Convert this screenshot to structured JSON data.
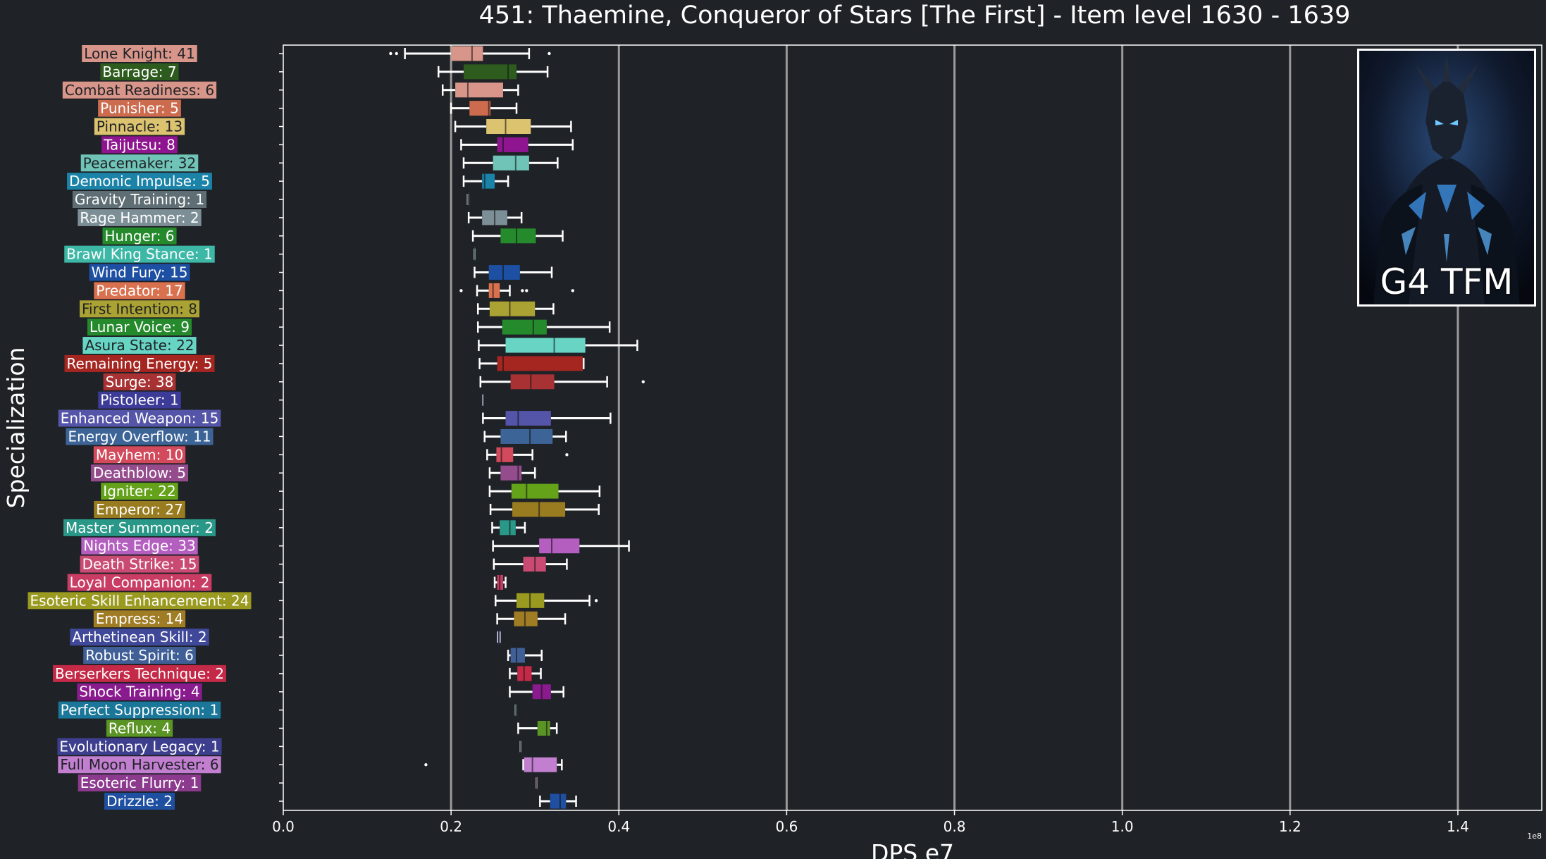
{
  "chart_data": {
    "type": "box",
    "title": "451: Thaemine, Conqueror of Stars [The First] - Item level 1630 - 1639",
    "xlabel": "DPS e7",
    "ylabel": "Specialization",
    "x_offset_label": "1e8",
    "xlim": [
      0,
      1.5
    ],
    "xticks": [
      0.0,
      0.2,
      0.4,
      0.6,
      0.8,
      1.0,
      1.2,
      1.4
    ],
    "xtick_labels": [
      "0.0",
      "0.2",
      "0.4",
      "0.6",
      "0.8",
      "1.0",
      "1.2",
      "1.4"
    ],
    "grid": "vertical",
    "series": [
      {
        "label": "Lone Knight: 41",
        "color": "#d8958a",
        "min": 0.145,
        "q1": 0.2,
        "median": 0.225,
        "q3": 0.238,
        "max": 0.293,
        "outliers": [
          0.128,
          0.135,
          0.317
        ]
      },
      {
        "label": "Barrage: 7",
        "color": "#2e5b1e",
        "min": 0.185,
        "q1": 0.215,
        "median": 0.268,
        "q3": 0.278,
        "max": 0.315,
        "outliers": []
      },
      {
        "label": "Combat Readiness: 6",
        "color": "#d8958a",
        "min": 0.19,
        "q1": 0.205,
        "median": 0.22,
        "q3": 0.262,
        "max": 0.28,
        "outliers": []
      },
      {
        "label": "Punisher: 5",
        "color": "#cd6b4f",
        "min": 0.2,
        "q1": 0.222,
        "median": 0.245,
        "q3": 0.247,
        "max": 0.278,
        "outliers": []
      },
      {
        "label": "Pinnacle: 13",
        "color": "#dcc36f",
        "min": 0.205,
        "q1": 0.242,
        "median": 0.265,
        "q3": 0.295,
        "max": 0.343,
        "outliers": []
      },
      {
        "label": "Taijutsu: 8",
        "color": "#8e158f",
        "min": 0.212,
        "q1": 0.255,
        "median": 0.262,
        "q3": 0.292,
        "max": 0.345,
        "outliers": []
      },
      {
        "label": "Peacemaker: 32",
        "color": "#6fc4b7",
        "min": 0.215,
        "q1": 0.25,
        "median": 0.277,
        "q3": 0.293,
        "max": 0.327,
        "outliers": []
      },
      {
        "label": "Demonic Impulse: 5",
        "color": "#1b83a8",
        "min": 0.215,
        "q1": 0.237,
        "median": 0.24,
        "q3": 0.252,
        "max": 0.268,
        "outliers": []
      },
      {
        "label": "Gravity Training: 1",
        "color": "#5f6e74",
        "min": 0.22,
        "q1": 0.22,
        "median": 0.22,
        "q3": 0.22,
        "max": 0.22,
        "outliers": []
      },
      {
        "label": "Rage Hammer: 2",
        "color": "#7d8f96",
        "min": 0.221,
        "q1": 0.237,
        "median": 0.252,
        "q3": 0.267,
        "max": 0.284,
        "outliers": []
      },
      {
        "label": "Hunger: 6",
        "color": "#258a2c",
        "min": 0.226,
        "q1": 0.259,
        "median": 0.278,
        "q3": 0.301,
        "max": 0.333,
        "outliers": []
      },
      {
        "label": "Brawl King Stance: 1",
        "color": "#3db8a7",
        "min": 0.228,
        "q1": 0.228,
        "median": 0.228,
        "q3": 0.228,
        "max": 0.228,
        "outliers": []
      },
      {
        "label": "Wind Fury: 15",
        "color": "#1d4fa2",
        "min": 0.228,
        "q1": 0.245,
        "median": 0.262,
        "q3": 0.282,
        "max": 0.32,
        "outliers": []
      },
      {
        "label": "Predator: 17",
        "color": "#d9714f",
        "min": 0.231,
        "q1": 0.245,
        "median": 0.25,
        "q3": 0.258,
        "max": 0.27,
        "outliers": [
          0.212,
          0.285,
          0.29,
          0.345
        ]
      },
      {
        "label": "First Intention: 8",
        "color": "#aaa233",
        "min": 0.232,
        "q1": 0.246,
        "median": 0.27,
        "q3": 0.3,
        "max": 0.322,
        "outliers": []
      },
      {
        "label": "Lunar Voice: 9",
        "color": "#258a2c",
        "min": 0.232,
        "q1": 0.261,
        "median": 0.298,
        "q3": 0.314,
        "max": 0.389,
        "outliers": []
      },
      {
        "label": "Asura State: 22",
        "color": "#67d4c4",
        "min": 0.233,
        "q1": 0.265,
        "median": 0.323,
        "q3": 0.36,
        "max": 0.422,
        "outliers": []
      },
      {
        "label": "Remaining Energy: 5",
        "color": "#a52621",
        "min": 0.234,
        "q1": 0.255,
        "median": 0.262,
        "q3": 0.357,
        "max": 0.358,
        "outliers": []
      },
      {
        "label": "Surge: 38",
        "color": "#a83233",
        "min": 0.235,
        "q1": 0.271,
        "median": 0.295,
        "q3": 0.323,
        "max": 0.386,
        "outliers": [
          0.429
        ]
      },
      {
        "label": "Pistoleer: 1",
        "color": "#3d3b98",
        "min": 0.238,
        "q1": 0.238,
        "median": 0.238,
        "q3": 0.238,
        "max": 0.238,
        "outliers": []
      },
      {
        "label": "Enhanced Weapon: 15",
        "color": "#5454a8",
        "min": 0.238,
        "q1": 0.265,
        "median": 0.28,
        "q3": 0.319,
        "max": 0.39,
        "outliers": []
      },
      {
        "label": "Energy Overflow: 11",
        "color": "#3c6497",
        "min": 0.24,
        "q1": 0.259,
        "median": 0.294,
        "q3": 0.321,
        "max": 0.337,
        "outliers": []
      },
      {
        "label": "Mayhem: 10",
        "color": "#d24a5c",
        "min": 0.243,
        "q1": 0.254,
        "median": 0.26,
        "q3": 0.274,
        "max": 0.297,
        "outliers": [
          0.338
        ]
      },
      {
        "label": "Deathblow: 5",
        "color": "#944c8d",
        "min": 0.246,
        "q1": 0.259,
        "median": 0.28,
        "q3": 0.284,
        "max": 0.3,
        "outliers": []
      },
      {
        "label": "Igniter: 22",
        "color": "#64a21a",
        "min": 0.246,
        "q1": 0.272,
        "median": 0.29,
        "q3": 0.328,
        "max": 0.377,
        "outliers": []
      },
      {
        "label": "Emperor: 27",
        "color": "#9a7c20",
        "min": 0.247,
        "q1": 0.273,
        "median": 0.305,
        "q3": 0.336,
        "max": 0.376,
        "outliers": []
      },
      {
        "label": "Master Summoner: 2",
        "color": "#299888",
        "min": 0.249,
        "q1": 0.258,
        "median": 0.27,
        "q3": 0.277,
        "max": 0.288,
        "outliers": []
      },
      {
        "label": "Nights Edge: 33",
        "color": "#b45fc0",
        "min": 0.25,
        "q1": 0.305,
        "median": 0.32,
        "q3": 0.353,
        "max": 0.412,
        "outliers": []
      },
      {
        "label": "Death Strike: 15",
        "color": "#c94b74",
        "min": 0.251,
        "q1": 0.286,
        "median": 0.3,
        "q3": 0.313,
        "max": 0.338,
        "outliers": []
      },
      {
        "label": "Loyal Companion: 2",
        "color": "#c93d64",
        "min": 0.252,
        "q1": 0.255,
        "median": 0.258,
        "q3": 0.262,
        "max": 0.265,
        "outliers": []
      },
      {
        "label": "Esoteric Skill Enhancement: 24",
        "color": "#9a9a20",
        "min": 0.253,
        "q1": 0.278,
        "median": 0.294,
        "q3": 0.311,
        "max": 0.365,
        "outliers": [
          0.373
        ]
      },
      {
        "label": "Empress: 14",
        "color": "#a07d25",
        "min": 0.255,
        "q1": 0.275,
        "median": 0.288,
        "q3": 0.303,
        "max": 0.336,
        "outliers": []
      },
      {
        "label": "Arthetinean Skill: 2",
        "color": "#40489a",
        "min": 0.256,
        "q1": 0.256,
        "median": 0.257,
        "q3": 0.258,
        "max": 0.258,
        "outliers": []
      },
      {
        "label": "Robust Spirit: 6",
        "color": "#3f5f96",
        "min": 0.268,
        "q1": 0.271,
        "median": 0.278,
        "q3": 0.288,
        "max": 0.308,
        "outliers": []
      },
      {
        "label": "Berserkers Technique: 2",
        "color": "#c42a48",
        "min": 0.27,
        "q1": 0.279,
        "median": 0.287,
        "q3": 0.296,
        "max": 0.307,
        "outliers": []
      },
      {
        "label": "Shock Training: 4",
        "color": "#8a1b8e",
        "min": 0.27,
        "q1": 0.297,
        "median": 0.308,
        "q3": 0.319,
        "max": 0.334,
        "outliers": []
      },
      {
        "label": "Perfect Suppression: 1",
        "color": "#1b7799",
        "min": 0.277,
        "q1": 0.277,
        "median": 0.277,
        "q3": 0.277,
        "max": 0.277,
        "outliers": []
      },
      {
        "label": "Reflux: 4",
        "color": "#5a9424",
        "min": 0.28,
        "q1": 0.303,
        "median": 0.314,
        "q3": 0.318,
        "max": 0.326,
        "outliers": []
      },
      {
        "label": "Evolutionary Legacy: 1",
        "color": "#3d3f8e",
        "min": 0.283,
        "q1": 0.283,
        "median": 0.283,
        "q3": 0.283,
        "max": 0.283,
        "outliers": []
      },
      {
        "label": "Full Moon Harvester: 6",
        "color": "#c27fd0",
        "min": 0.286,
        "q1": 0.287,
        "median": 0.297,
        "q3": 0.326,
        "max": 0.332,
        "outliers": [
          0.17
        ]
      },
      {
        "label": "Esoteric Flurry: 1",
        "color": "#8c3a8e",
        "min": 0.302,
        "q1": 0.302,
        "median": 0.302,
        "q3": 0.302,
        "max": 0.302,
        "outliers": []
      },
      {
        "label": "Drizzle: 2",
        "color": "#1f4fa0",
        "min": 0.306,
        "q1": 0.318,
        "median": 0.33,
        "q3": 0.337,
        "max": 0.349,
        "outliers": []
      }
    ]
  },
  "portrait": {
    "caption": "G4 TFM",
    "icon": "dark-armored-warrior-portrait"
  },
  "colors": {
    "background": "#1f2226",
    "grid": "#9a9a9a",
    "axis": "#ffffff"
  }
}
